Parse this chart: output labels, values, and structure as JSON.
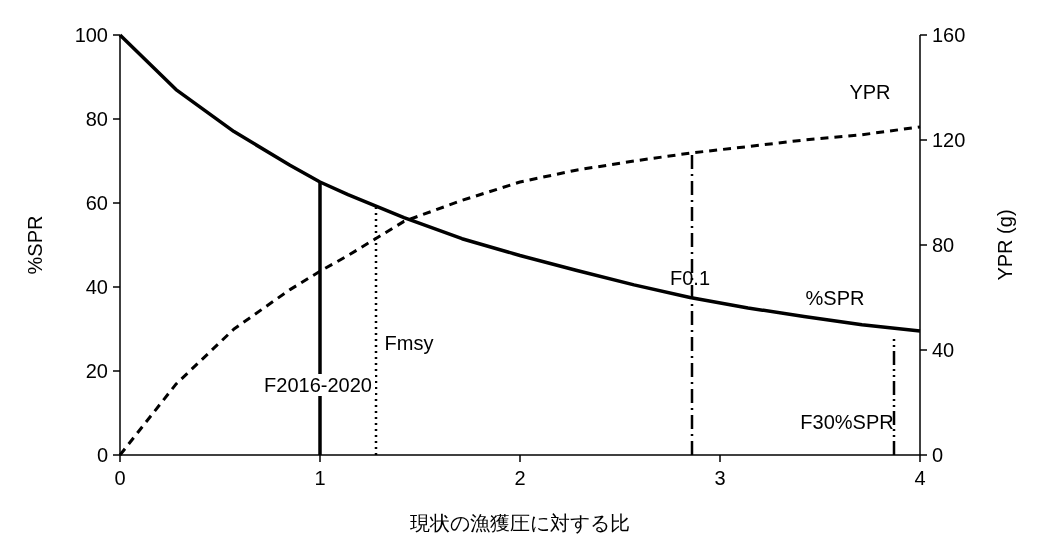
{
  "chart_data": {
    "type": "line",
    "xlabel": "現状の漁獲圧に対する比",
    "ylabel": "%SPR",
    "y2label": "YPR (g)",
    "xlim": [
      0,
      4
    ],
    "xticks": [
      0,
      1,
      2,
      3,
      4
    ],
    "ylim": [
      0,
      100
    ],
    "yticks": [
      0,
      20,
      40,
      60,
      80,
      100
    ],
    "y2lim": [
      0,
      160
    ],
    "y2ticks": [
      0,
      40,
      80,
      120,
      160
    ],
    "series": [
      {
        "color": "#000000",
        "line_style": "solid",
        "x": [
          0,
          0.28,
          0.57,
          0.85,
          1.0,
          1.14,
          1.42,
          1.71,
          2,
          2.28,
          2.57,
          2.85,
          3.14,
          3.42,
          3.71,
          4
        ],
        "values": [
          100,
          87,
          77,
          69,
          65,
          62,
          56.5,
          51.5,
          47.5,
          44,
          40.5,
          37.5,
          35,
          33,
          31,
          29.5
        ]
      },
      {
        "color": "#000000",
        "line_style": "dashed",
        "axis": "y2",
        "x": [
          0,
          0.28,
          0.57,
          0.85,
          1.0,
          1.14,
          1.42,
          1.71,
          2,
          2.28,
          2.57,
          2.85,
          3.14,
          3.42,
          3.71,
          4
        ],
        "values": [
          0,
          27,
          48,
          63,
          70,
          76,
          89,
          97,
          104,
          108.5,
          112,
          115,
          117.5,
          120,
          122,
          125
        ]
      },
      {
        "color": "#000000",
        "line_style": "solid",
        "x": [
          1,
          1
        ],
        "values": [
          0,
          65
        ]
      },
      {
        "color": "#000000",
        "line_style": "dotted",
        "x": [
          1.28,
          1.28
        ],
        "values": [
          0,
          59
        ]
      },
      {
        "color": "#000000",
        "line_style": "dashdot",
        "x": [
          2.86,
          2.86
        ],
        "values": [
          0,
          72
        ]
      },
      {
        "color": "#000000",
        "line_style": "dashdotdot",
        "x": [
          3.87,
          3.87
        ],
        "values": [
          0,
          28
        ]
      }
    ],
    "annotations": [
      "YPR",
      "%SPR",
      "F0.1",
      "Fmsy",
      "F2016-2020",
      "F30%SPR"
    ]
  }
}
